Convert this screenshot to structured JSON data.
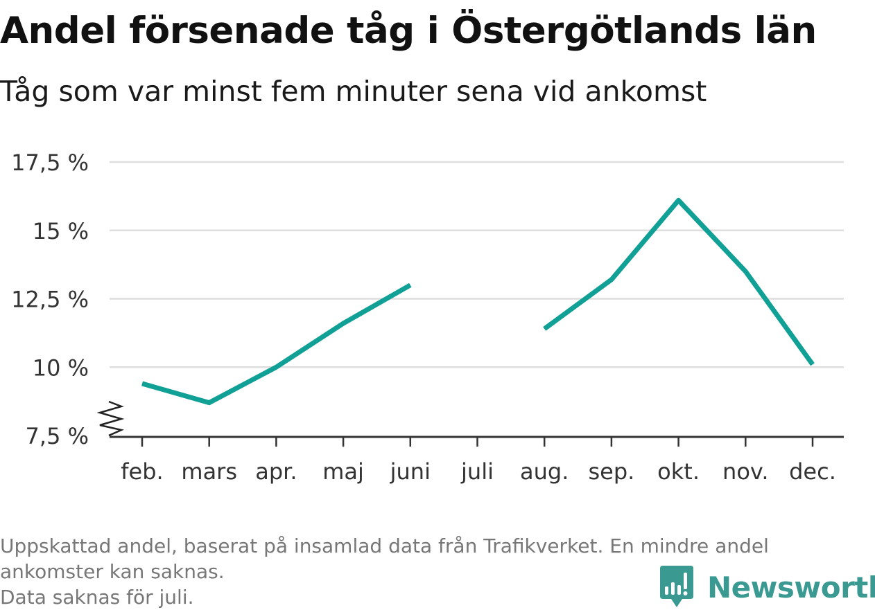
{
  "header": {
    "title": "Andel försenade tåg i Östergötlands län",
    "subtitle": "Tåg som var minst fem minuter sena vid ankomst"
  },
  "footnote": {
    "line1": "Uppskattad andel, baserat på insamlad data från Trafikverket. En mindre andel",
    "line2": "ankomster kan saknas.",
    "line3": "Data saknas för juli."
  },
  "brand": {
    "name": "Newsworthy",
    "icon": "newsworthy-logo-icon",
    "color": "#3a9a92"
  },
  "chart_data": {
    "type": "line",
    "title": "Andel försenade tåg i Östergötlands län",
    "subtitle": "Tåg som var minst fem minuter sena vid ankomst",
    "categories": [
      "feb.",
      "mars",
      "apr.",
      "maj",
      "juni",
      "juli",
      "aug.",
      "sep.",
      "okt.",
      "nov.",
      "dec."
    ],
    "series": [
      {
        "values": [
          9.4,
          8.7,
          10.0,
          11.6,
          13.0,
          null,
          11.4,
          13.2,
          16.1,
          13.5,
          10.1
        ],
        "color": "#10a096"
      }
    ],
    "ylim": [
      7.5,
      17.5
    ],
    "yticks": [
      7.5,
      10,
      12.5,
      15,
      17.5
    ],
    "ytick_labels": [
      "7,5 %",
      "10 %",
      "12,5 %",
      "15 %",
      "17,5 %"
    ],
    "y_axis_break": true,
    "grid": true,
    "xlabel": "",
    "ylabel": ""
  }
}
